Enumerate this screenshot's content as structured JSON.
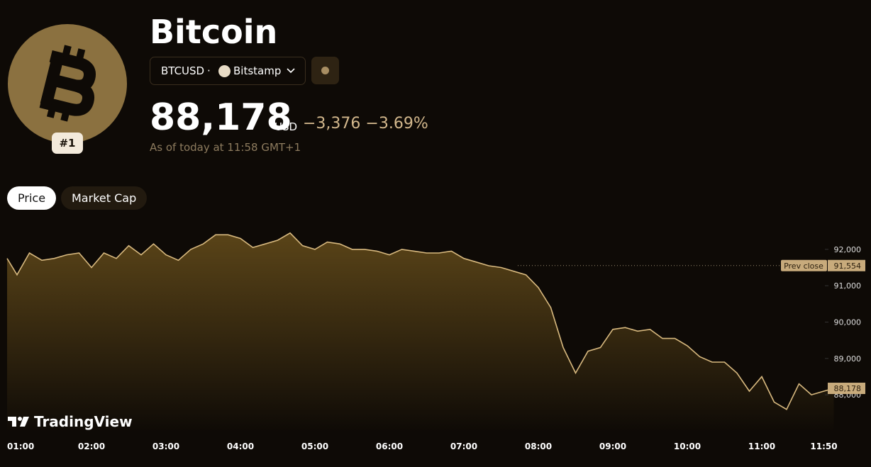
{
  "header": {
    "title": "Bitcoin",
    "rank": "#1",
    "symbol": "BTCUSD",
    "separator": "·",
    "exchange": "Bitstamp",
    "price": "88,178",
    "currency": "USD",
    "change": "−3,376",
    "change_percent": "−3.69%",
    "as_of": "As of today at 11:58 GMT+1"
  },
  "tabs": [
    "Price",
    "Market Cap"
  ],
  "brand": "TradingView",
  "chart_data": {
    "type": "line",
    "color": "#d8b97f",
    "x": [
      "00:52",
      "01:00",
      "01:10",
      "01:20",
      "01:30",
      "01:40",
      "01:50",
      "02:00",
      "02:10",
      "02:20",
      "02:30",
      "02:40",
      "02:50",
      "03:00",
      "03:10",
      "03:20",
      "03:30",
      "03:40",
      "03:50",
      "04:00",
      "04:10",
      "04:20",
      "04:30",
      "04:40",
      "04:50",
      "05:00",
      "05:10",
      "05:20",
      "05:30",
      "05:40",
      "05:50",
      "06:00",
      "06:10",
      "06:20",
      "06:30",
      "06:40",
      "06:50",
      "07:00",
      "07:10",
      "07:20",
      "07:30",
      "07:40",
      "07:50",
      "08:00",
      "08:10",
      "08:20",
      "08:30",
      "08:40",
      "08:50",
      "09:00",
      "09:10",
      "09:20",
      "09:30",
      "09:40",
      "09:50",
      "10:00",
      "10:10",
      "10:20",
      "10:30",
      "10:40",
      "10:50",
      "11:00",
      "11:10",
      "11:20",
      "11:30",
      "11:40",
      "11:50",
      "11:58"
    ],
    "values": [
      91750,
      91300,
      91900,
      91700,
      91750,
      91850,
      91900,
      91500,
      91900,
      91750,
      92100,
      91850,
      92150,
      91850,
      91700,
      92000,
      92150,
      92400,
      92400,
      92300,
      92050,
      92150,
      92250,
      92450,
      92100,
      92000,
      92200,
      92150,
      92000,
      92000,
      91950,
      91850,
      92000,
      91950,
      91900,
      91900,
      91950,
      91750,
      91650,
      91550,
      91500,
      91400,
      91300,
      90950,
      90400,
      89300,
      88600,
      89200,
      89300,
      89800,
      89850,
      89750,
      89800,
      89550,
      89550,
      89350,
      89050,
      88900,
      88900,
      88600,
      88100,
      88500,
      87800,
      87600,
      88300,
      88000,
      88100,
      88178
    ],
    "ylim": [
      86970,
      92660
    ],
    "yticks": [
      {
        "value": 92000,
        "label": "92,000"
      },
      {
        "value": 91000,
        "label": "91,000"
      },
      {
        "value": 90000,
        "label": "90,000"
      },
      {
        "value": 89000,
        "label": "89,000"
      },
      {
        "value": 88000,
        "label": "88,000"
      }
    ],
    "xticks": [
      "01:00",
      "02:00",
      "03:00",
      "04:00",
      "05:00",
      "06:00",
      "07:00",
      "08:00",
      "09:00",
      "10:00",
      "11:00",
      "11:50"
    ],
    "prev_close": {
      "label": "Prev close",
      "value": 91554,
      "value_label": "91,554"
    },
    "last": {
      "value": 88178,
      "value_label": "88,178"
    }
  }
}
